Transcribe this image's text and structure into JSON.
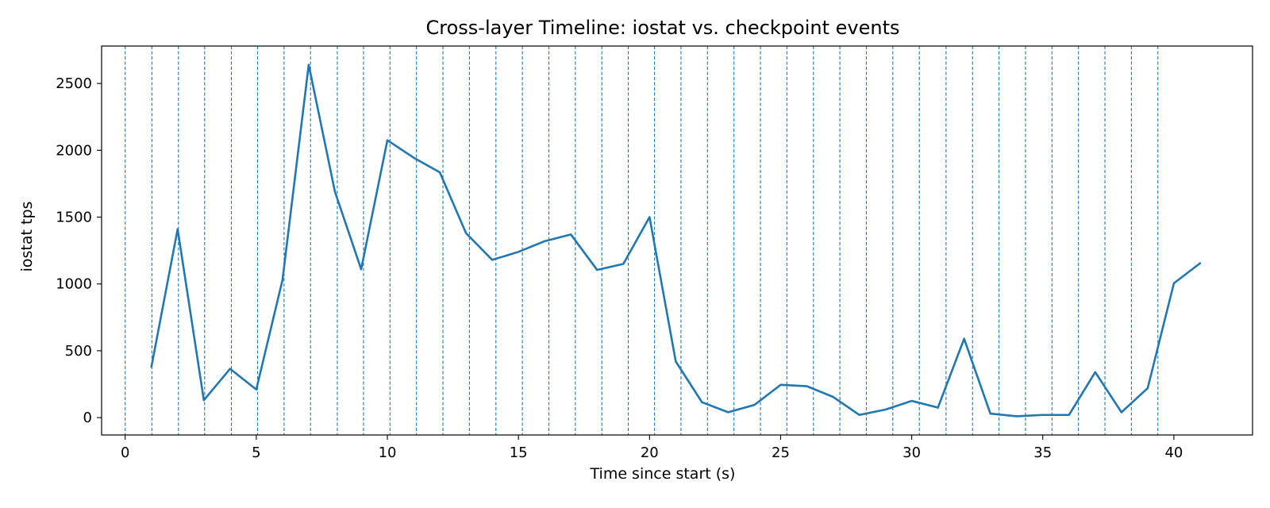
{
  "chart_data": {
    "type": "line",
    "title": "Cross-layer Timeline: iostat vs. checkpoint events",
    "xlabel": "Time since start (s)",
    "ylabel": "iostat tps",
    "xlim": [
      -0.9,
      43.0
    ],
    "ylim": [
      -130,
      2780
    ],
    "xticks": [
      0,
      5,
      10,
      15,
      20,
      25,
      30,
      35,
      40
    ],
    "yticks": [
      0,
      500,
      1000,
      1500,
      2000,
      2500
    ],
    "grid": false,
    "legend": "none",
    "colors": {
      "line": "#1f77b4",
      "event_line": "#1f77b4"
    },
    "series": [
      {
        "x": [
          1,
          2,
          3,
          4,
          5,
          6,
          7,
          8,
          9,
          10,
          11,
          12,
          13,
          14,
          15,
          16,
          17,
          18,
          19,
          20,
          21,
          22,
          23,
          24,
          25,
          26,
          27,
          28,
          29,
          30,
          31,
          32,
          33,
          34,
          35,
          36,
          37,
          38,
          39,
          40,
          41
        ],
        "y": [
          380,
          1410,
          130,
          365,
          210,
          1030,
          2640,
          1690,
          1110,
          2075,
          1945,
          1835,
          1380,
          1180,
          1240,
          1320,
          1370,
          1105,
          1150,
          1500,
          420,
          115,
          40,
          95,
          245,
          235,
          155,
          20,
          60,
          125,
          75,
          590,
          30,
          10,
          20,
          20,
          340,
          40,
          220,
          1005,
          1155
        ]
      }
    ],
    "events_x": [
      0,
      1.02,
      2.03,
      3.03,
      4.05,
      5.05,
      6.06,
      7.07,
      8.09,
      9.09,
      10.1,
      11.11,
      12.12,
      13.13,
      14.14,
      15.15,
      16.16,
      17.17,
      18.18,
      19.19,
      20.19,
      21.2,
      22.21,
      23.22,
      24.23,
      25.24,
      26.25,
      27.26,
      28.27,
      29.28,
      30.29,
      31.31,
      32.32,
      33.33,
      34.34,
      35.35,
      36.36,
      37.37,
      38.38,
      39.39
    ]
  }
}
